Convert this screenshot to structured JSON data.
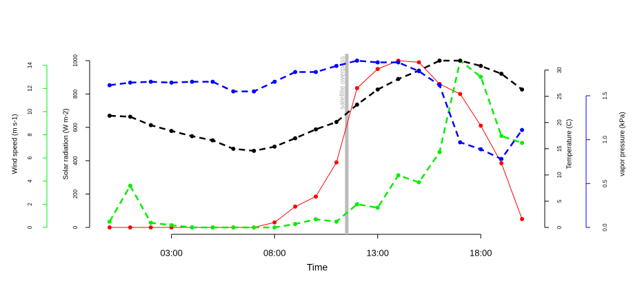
{
  "chart_data": {
    "type": "line",
    "xlabel": "Time",
    "x": [
      0,
      1,
      2,
      3,
      4,
      5,
      6,
      7,
      8,
      9,
      10,
      11,
      12,
      13,
      14,
      15,
      16,
      17,
      18,
      19,
      20
    ],
    "xlim": [
      -0.8,
      20.8
    ],
    "xticks": [
      {
        "value": 3,
        "label": "03:00"
      },
      {
        "value": 8,
        "label": "08:00"
      },
      {
        "value": 13,
        "label": "13:00"
      },
      {
        "value": 18,
        "label": "18:00"
      }
    ],
    "axes": [
      {
        "label": "Solar radiation (W m-2)",
        "lim": [
          0,
          1000
        ],
        "ticks": [
          0,
          200,
          400,
          600,
          800,
          1000
        ],
        "color": "#000000",
        "side": "left"
      },
      {
        "label": "Wind speed (m s-1)",
        "lim": [
          0,
          14.4
        ],
        "ticks": [
          0,
          2,
          4,
          6,
          8,
          10,
          12,
          14
        ],
        "color": "#00ee00",
        "side": "left"
      },
      {
        "label": "Temperature (C)",
        "lim": [
          0,
          31.8
        ],
        "ticks": [
          0,
          5,
          10,
          15,
          20,
          25,
          30
        ],
        "color": "#000000",
        "side": "right"
      },
      {
        "label": "vapor pressure (kPa)",
        "lim": [
          0,
          1.9
        ],
        "ticks": [
          {
            "value": 0,
            "label": "0.0"
          },
          0.5,
          {
            "value": 1,
            "label": "1.0"
          },
          1.5
        ],
        "color": "#0000ff",
        "side": "right"
      }
    ],
    "series": [
      {
        "name": "Solar radiation",
        "color": "#ff0000",
        "axis": 0,
        "dashed": false,
        "values": [
          0,
          0,
          0,
          0,
          0,
          0,
          0,
          0,
          30,
          125,
          185,
          390,
          835,
          950,
          1000,
          990,
          860,
          800,
          610,
          385,
          50
        ]
      },
      {
        "name": "Wind speed",
        "color": "#00ee00",
        "axis": 1,
        "dashed": true,
        "values": [
          0.5,
          3.6,
          0.4,
          0.2,
          0,
          0,
          0,
          0,
          0,
          0.3,
          0.7,
          0.5,
          2.0,
          1.7,
          4.5,
          3.9,
          6.5,
          14.4,
          13.0,
          7.9,
          7.3
        ]
      },
      {
        "name": "Temperature",
        "color": "#000000",
        "axis": 2,
        "dashed": true,
        "values": [
          21.3,
          21.1,
          19.5,
          18.4,
          17.4,
          16.6,
          15.0,
          14.6,
          15.4,
          17.0,
          18.7,
          20.1,
          23.4,
          26.3,
          28.3,
          29.9,
          31.8,
          31.8,
          30.8,
          29.3,
          26.3
        ]
      },
      {
        "name": "vapor pressure",
        "color": "#0000ff",
        "axis": 3,
        "dashed": true,
        "values": [
          1.62,
          1.65,
          1.66,
          1.65,
          1.66,
          1.66,
          1.55,
          1.55,
          1.66,
          1.77,
          1.77,
          1.84,
          1.9,
          1.88,
          1.88,
          1.78,
          1.62,
          0.97,
          0.89,
          0.78,
          1.11
        ]
      }
    ],
    "annotation": {
      "x": 11.5,
      "text": "satellite overpass",
      "color": "#bbbbbb"
    }
  }
}
